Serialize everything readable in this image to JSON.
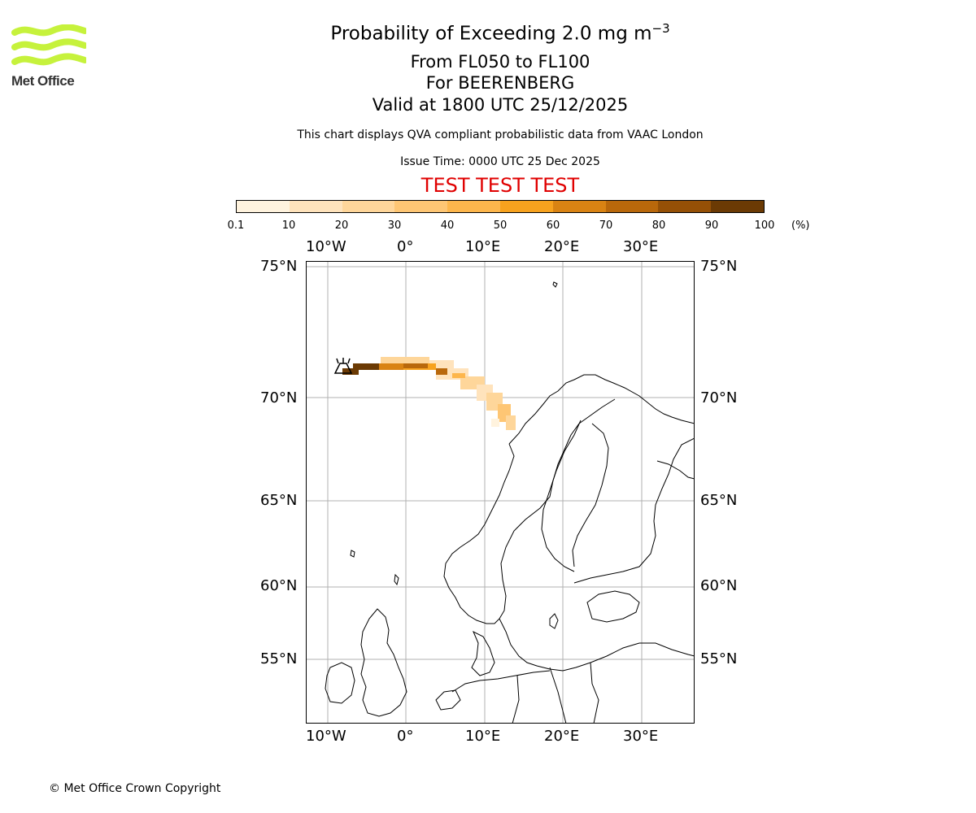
{
  "logo": {
    "text": "Met Office",
    "color": "#c6f23c"
  },
  "header": {
    "title_prefix": "Probability of Exceeding 2.0 mg m",
    "title_exp": "−3",
    "level_range": "From FL050 to FL100",
    "volcano": "For BEERENBERG",
    "valid": "Valid at 1800 UTC 25/12/2025",
    "description": "This chart displays QVA compliant probabilistic data from VAAC London",
    "issue_time": "Issue Time: 0000 UTC 25 Dec 2025",
    "test_banner": "TEST TEST TEST"
  },
  "colorbar": {
    "ticks": [
      "0.1",
      "10",
      "20",
      "30",
      "40",
      "50",
      "60",
      "70",
      "80",
      "90",
      "100"
    ],
    "unit": "(%)",
    "colors": [
      "#fff3de",
      "#ffe3bc",
      "#ffd69a",
      "#fec674",
      "#fdb64c",
      "#f7a21e",
      "#d98313",
      "#b9680b",
      "#955006",
      "#6b3a04"
    ]
  },
  "map": {
    "lon_labels": [
      "10°W",
      "0°",
      "10°E",
      "20°E",
      "30°E"
    ],
    "lat_labels": [
      "75°N",
      "70°N",
      "65°N",
      "60°N",
      "55°N"
    ],
    "volcano_name": "BEERENBERG"
  },
  "footer": {
    "copyright": "© Met Office Crown Copyright"
  }
}
